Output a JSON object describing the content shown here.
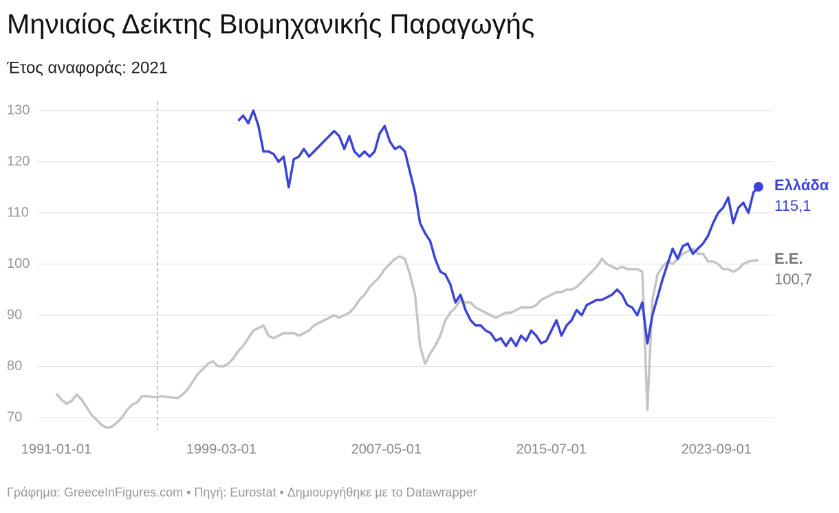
{
  "chart_data": {
    "type": "line",
    "title": "Μηνιαίος Δείκτης Βιομηχανικής Παραγωγής",
    "subtitle": "Έτος αναφοράς: 2021",
    "source": "Γράφημα: GreeceInFigures.com • Πηγή: Eurostat • Δημιουργήθηκε με το Datawrapper",
    "x": [
      "1991-01-01",
      "1991-04-01",
      "1991-07-01",
      "1991-10-01",
      "1992-01-01",
      "1992-04-01",
      "1992-07-01",
      "1992-10-01",
      "1993-01-01",
      "1993-04-01",
      "1993-07-01",
      "1993-10-01",
      "1994-01-01",
      "1994-04-01",
      "1994-07-01",
      "1994-10-01",
      "1995-01-01",
      "1995-04-01",
      "1995-07-01",
      "1995-10-01",
      "1996-01-01",
      "1996-04-01",
      "1996-07-01",
      "1996-10-01",
      "1997-01-01",
      "1997-04-01",
      "1997-07-01",
      "1997-10-01",
      "1998-01-01",
      "1998-04-01",
      "1998-07-01",
      "1998-10-01",
      "1999-01-01",
      "1999-04-01",
      "1999-07-01",
      "1999-10-01",
      "2000-01-01",
      "2000-04-01",
      "2000-07-01",
      "2000-10-01",
      "2001-01-01",
      "2001-04-01",
      "2001-07-01",
      "2001-10-01",
      "2002-01-01",
      "2002-04-01",
      "2002-07-01",
      "2002-10-01",
      "2003-01-01",
      "2003-04-01",
      "2003-07-01",
      "2003-10-01",
      "2004-01-01",
      "2004-04-01",
      "2004-07-01",
      "2004-10-01",
      "2005-01-01",
      "2005-04-01",
      "2005-07-01",
      "2005-10-01",
      "2006-01-01",
      "2006-04-01",
      "2006-07-01",
      "2006-10-01",
      "2007-01-01",
      "2007-04-01",
      "2007-07-01",
      "2007-10-01",
      "2008-01-01",
      "2008-04-01",
      "2008-07-01",
      "2008-10-01",
      "2009-01-01",
      "2009-04-01",
      "2009-07-01",
      "2009-10-01",
      "2010-01-01",
      "2010-04-01",
      "2010-07-01",
      "2010-10-01",
      "2011-01-01",
      "2011-04-01",
      "2011-07-01",
      "2011-10-01",
      "2012-01-01",
      "2012-04-01",
      "2012-07-01",
      "2012-10-01",
      "2013-01-01",
      "2013-04-01",
      "2013-07-01",
      "2013-10-01",
      "2014-01-01",
      "2014-04-01",
      "2014-07-01",
      "2014-10-01",
      "2015-01-01",
      "2015-04-01",
      "2015-07-01",
      "2015-10-01",
      "2016-01-01",
      "2016-04-01",
      "2016-07-01",
      "2016-10-01",
      "2017-01-01",
      "2017-04-01",
      "2017-07-01",
      "2017-10-01",
      "2018-01-01",
      "2018-04-01",
      "2018-07-01",
      "2018-10-01",
      "2019-01-01",
      "2019-04-01",
      "2019-07-01",
      "2019-10-01",
      "2020-01-01",
      "2020-04-01",
      "2020-07-01",
      "2020-10-01",
      "2021-01-01",
      "2021-04-01",
      "2021-07-01",
      "2021-10-01",
      "2022-01-01",
      "2022-04-01",
      "2022-07-01",
      "2022-10-01",
      "2023-01-01",
      "2023-04-01",
      "2023-07-01",
      "2023-10-01",
      "2024-01-01",
      "2024-04-01",
      "2024-07-01",
      "2024-10-01",
      "2025-01-01",
      "2025-04-01",
      "2025-07-01",
      "2025-10-01"
    ],
    "series": [
      {
        "name": "Ελλάδα",
        "color": "#3b44d6",
        "last_label": "115,1",
        "values": [
          null,
          null,
          null,
          null,
          null,
          null,
          null,
          null,
          null,
          null,
          null,
          null,
          null,
          null,
          null,
          null,
          null,
          null,
          null,
          null,
          null,
          null,
          null,
          null,
          null,
          null,
          null,
          null,
          null,
          null,
          null,
          null,
          null,
          null,
          null,
          null,
          128,
          129,
          127.5,
          130,
          127,
          122,
          122,
          121.5,
          120,
          121,
          115,
          120.5,
          121,
          122.5,
          121,
          122,
          123,
          124,
          125,
          126,
          125,
          122.5,
          125,
          122,
          121,
          122,
          121,
          122,
          125.5,
          127,
          124,
          122.5,
          123,
          122,
          118,
          114,
          108,
          106,
          104.5,
          101,
          98.5,
          98,
          96,
          92.5,
          94,
          91,
          89,
          88,
          88,
          87,
          86.5,
          85,
          85.5,
          84,
          85.5,
          84,
          86,
          85,
          87,
          86,
          84.5,
          85,
          87,
          89,
          86,
          88,
          89,
          91,
          90,
          92,
          92.5,
          93,
          93,
          93.5,
          94,
          95,
          94,
          92,
          91.5,
          90,
          92.5,
          84.5,
          90,
          93.5,
          97,
          100,
          103,
          101,
          103.5,
          104,
          102,
          103,
          104,
          105.5,
          108,
          110,
          111,
          113,
          108,
          111,
          112,
          110,
          114,
          115.1
        ]
      },
      {
        "name": "Ε.Ε.",
        "color": "#c4c4c4",
        "last_label": "100,7",
        "values": [
          74.7,
          73.5,
          72.7,
          73.2,
          74.5,
          73.5,
          72,
          70.5,
          69.5,
          68.5,
          68,
          68.2,
          69,
          70,
          71.5,
          72.5,
          73,
          74.2,
          74.2,
          74,
          74,
          74.2,
          74,
          73.9,
          73.8,
          74.5,
          75.5,
          77,
          78.5,
          79.5,
          80.5,
          81,
          80,
          80,
          80.5,
          81.5,
          83,
          84,
          85.5,
          87,
          87.5,
          88,
          86,
          85.5,
          86,
          86.5,
          86.5,
          86.5,
          86,
          86.5,
          87,
          88,
          88.5,
          89,
          89.5,
          90,
          89.5,
          90,
          90.5,
          91.5,
          93,
          94,
          95.5,
          96.5,
          97.5,
          99,
          100,
          101,
          101.5,
          101,
          98,
          94,
          84,
          80.5,
          82.5,
          84,
          86,
          89,
          90.5,
          91.5,
          93,
          92.5,
          92.5,
          91.5,
          91,
          90.5,
          90,
          89.5,
          90,
          90.5,
          90.5,
          91,
          91.5,
          91.5,
          91.5,
          92,
          93,
          93.5,
          94,
          94.5,
          94.5,
          95,
          95,
          95.5,
          96.5,
          97.5,
          98.5,
          99.5,
          101,
          100,
          99.5,
          99,
          99.5,
          99,
          99,
          99,
          98.5,
          71.5,
          93,
          98,
          99.5,
          100.5,
          100,
          101,
          102,
          102.5,
          103,
          102,
          102,
          100.5,
          100.5,
          100,
          99,
          99,
          98.5,
          99,
          100,
          100.5,
          100.7,
          100.7
        ]
      }
    ],
    "xlim": [
      "1990-02-01",
      "2026-07-01"
    ],
    "xticks": [
      "1991-01-01",
      "1999-03-01",
      "2007-05-01",
      "2015-07-01",
      "2023-09-01"
    ],
    "reference_line_x": "1996-01-01",
    "ylim": [
      67.5,
      131.5
    ],
    "yticks": [
      70,
      80,
      90,
      100,
      110,
      120,
      130
    ],
    "grid": true
  }
}
